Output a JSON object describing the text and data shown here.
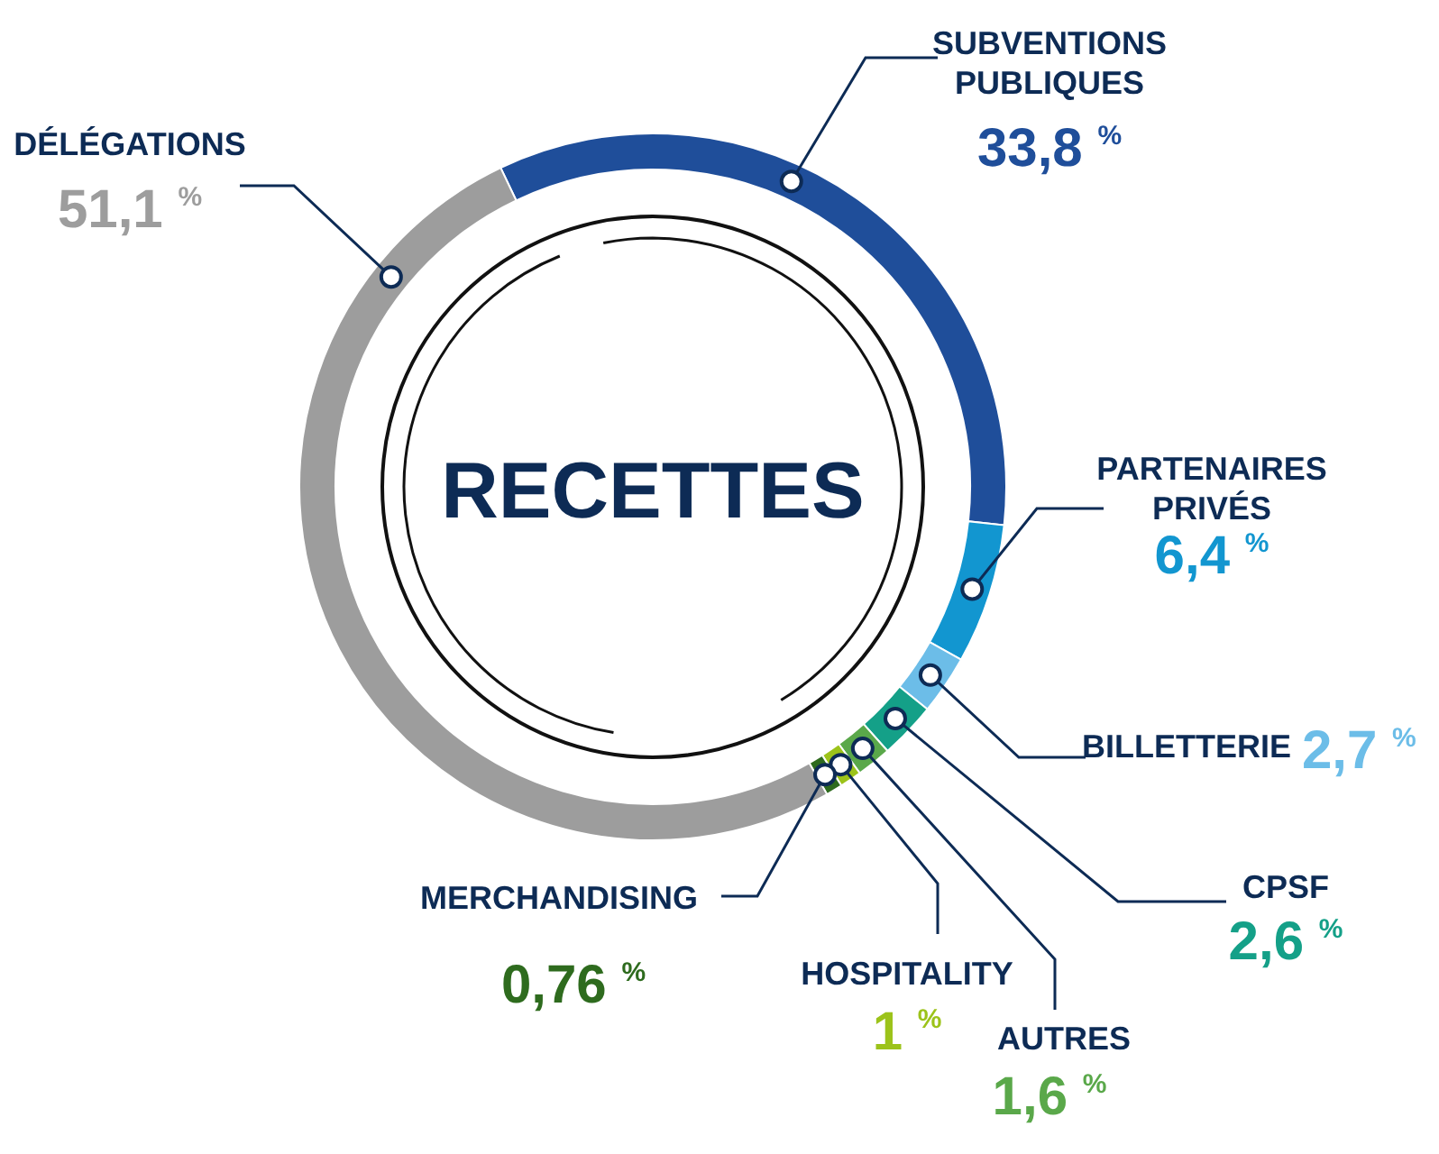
{
  "chart_data": {
    "type": "donut",
    "title": "RECETTES",
    "categories": [
      "SUBVENTIONS PUBLIQUES",
      "PARTENAIRES PRIVÉS",
      "BILLETTERIE",
      "CPSF",
      "AUTRES",
      "HOSPITALITY",
      "MERCHANDISING",
      "DÉLÉGATIONS"
    ],
    "values": [
      33.8,
      6.4,
      2.7,
      2.6,
      1.6,
      1,
      0.76,
      51.1
    ],
    "colors": [
      "#1f4e9a",
      "#1296d0",
      "#6cbde8",
      "#14a088",
      "#5aa84a",
      "#9cc31a",
      "#2e6b1e",
      "#9d9d9d"
    ],
    "value_labels": [
      "33,8 $^{%}$",
      "6,4 $^{%}$",
      "2,7 $^{%}$",
      "2,6 $^{%}$",
      "1,6 $^{%}$",
      "1 $^{%}$",
      "0,76 $^{%}$",
      "51,1 $^{%}$"
    ]
  }
}
